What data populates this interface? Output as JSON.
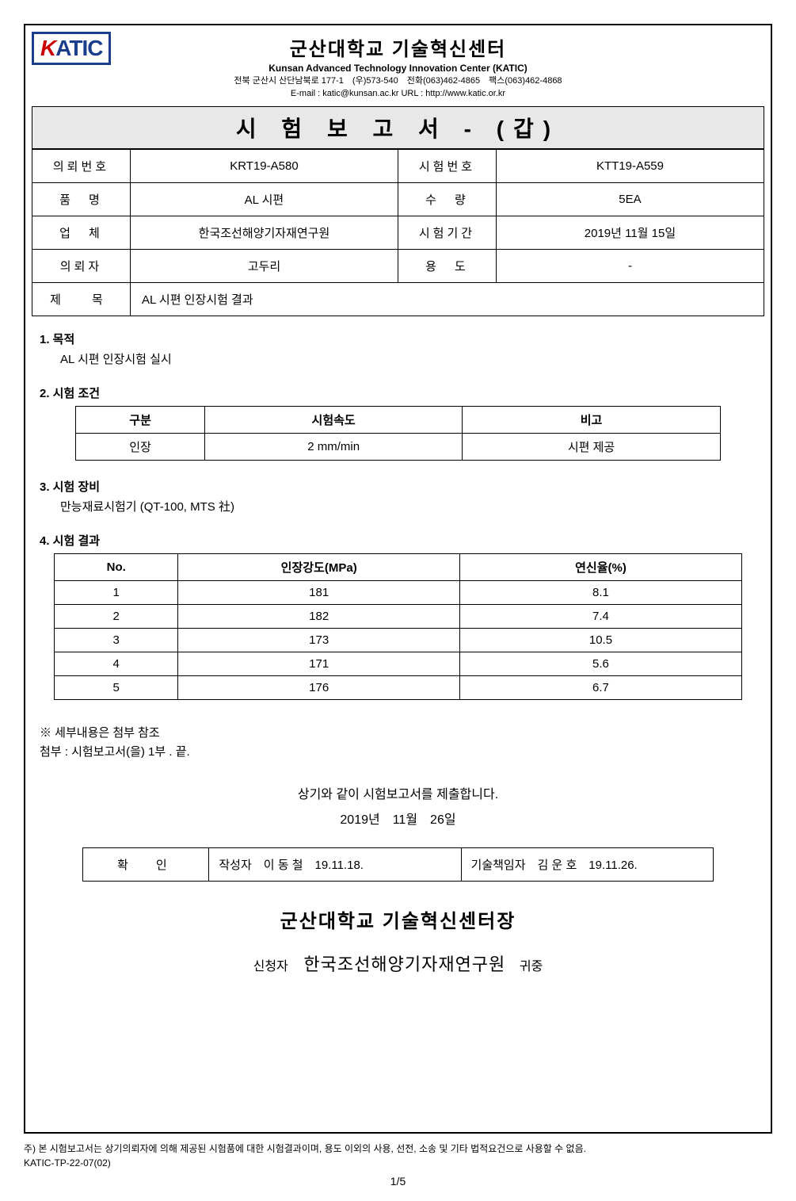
{
  "logo": {
    "k": "K",
    "rest": "ATIC"
  },
  "org": {
    "title_kr": "군산대학교 기술혁신센터",
    "title_en": "Kunsan Advanced Technology Innovation Center (KATIC)",
    "contact_line1": "전북 군산시 산단남북로 177-1　(우)573-540　전화(063)462-4865　팩스(063)462-4868",
    "contact_line2": "E-mail : katic@kunsan.ac.kr URL : http://www.katic.or.kr"
  },
  "report_title": "시 험 보 고 서 - (갑)",
  "info": {
    "labels": {
      "req_no": "의뢰번호",
      "test_no": "시험번호",
      "product": "품　명",
      "qty": "수　량",
      "company": "업　체",
      "period": "시험기간",
      "requester": "의뢰자",
      "usage": "용　도",
      "subject": "제　목"
    },
    "req_no": "KRT19-A580",
    "test_no": "KTT19-A559",
    "product": "AL 시편",
    "qty": "5EA",
    "company": "한국조선해양기자재연구원",
    "period": "2019년 11월 15일",
    "requester": "고두리",
    "usage": "-",
    "subject": "AL 시편 인장시험 결과"
  },
  "sections": {
    "s1": {
      "title": "1. 목적",
      "body": "AL 시편 인장시험 실시"
    },
    "s2": {
      "title": "2. 시험 조건"
    },
    "cond_table": {
      "headers": {
        "c1": "구분",
        "c2": "시험속도",
        "c3": "비고"
      },
      "row": {
        "c1": "인장",
        "c2": "2 mm/min",
        "c3": "시편 제공"
      }
    },
    "s3": {
      "title": "3. 시험 장비",
      "body": "만능재료시험기 (QT-100, MTS 社)"
    },
    "s4": {
      "title": "4. 시험 결과"
    },
    "result_table": {
      "headers": {
        "h1": "No.",
        "h2": "인장강도(MPa)",
        "h3": "연신율(%)"
      },
      "rows": [
        {
          "no": "1",
          "mpa": "181",
          "elong": "8.1"
        },
        {
          "no": "2",
          "mpa": "182",
          "elong": "7.4"
        },
        {
          "no": "3",
          "mpa": "173",
          "elong": "10.5"
        },
        {
          "no": "4",
          "mpa": "171",
          "elong": "5.6"
        },
        {
          "no": "5",
          "mpa": "176",
          "elong": "6.7"
        }
      ]
    }
  },
  "notes": {
    "line1": "※ 세부내용은 첨부 참조",
    "line2": "첨부 : 시험보고서(을) 1부 . 끝."
  },
  "submit": {
    "line1": "상기와 같이 시험보고서를 제출합니다.",
    "line2": "2019년　11월　26일"
  },
  "sign": {
    "label": "확　인",
    "left": "작성자　이 동 철　19.11.18.",
    "right": "기술책임자　김 운 호　19.11.26."
  },
  "director": "군산대학교 기술혁신센터장",
  "applicant": {
    "label": "신청자",
    "org": "한국조선해양기자재연구원",
    "suffix": "귀중"
  },
  "footnote": {
    "line1": "주) 본 시험보고서는 상기의뢰자에 의해 제공된 시험품에 대한 시험결과이며, 용도 이외의 사용, 선전, 소송 및 기타 법적요건으로 사용할 수 없음.",
    "line2": "KATIC-TP-22-07(02)"
  },
  "page": "1/5"
}
